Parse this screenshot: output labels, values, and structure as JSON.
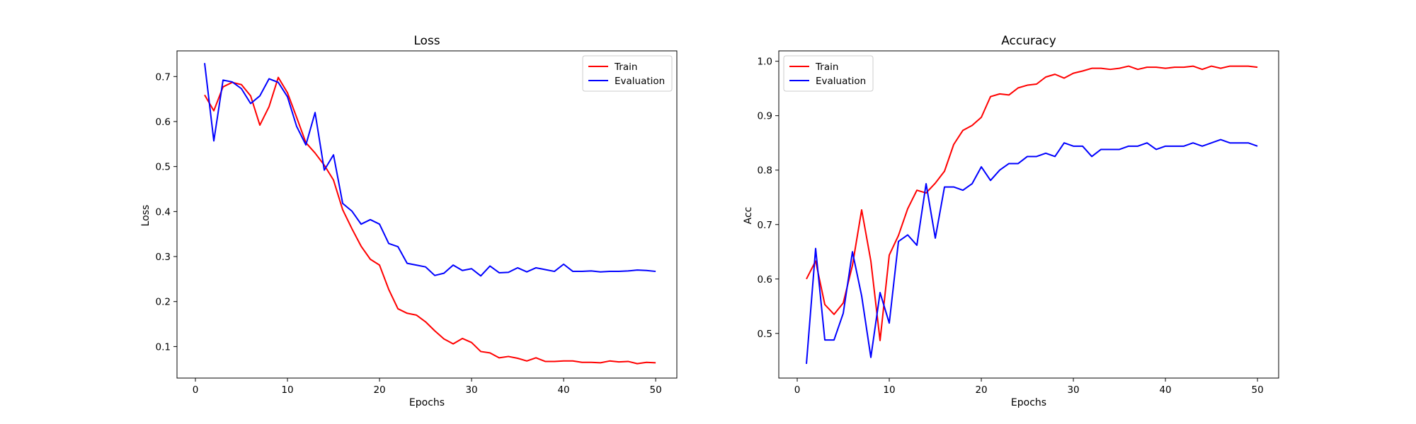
{
  "chart_data": [
    {
      "type": "line",
      "title": "Loss",
      "xlabel": "Epochs",
      "ylabel": "Loss",
      "xlim": [
        -2,
        52.3
      ],
      "ylim": [
        0.03,
        0.757
      ],
      "xticks": [
        0,
        10,
        20,
        30,
        40,
        50
      ],
      "yticks": [
        0.1,
        0.2,
        0.3,
        0.4,
        0.5,
        0.6,
        0.7
      ],
      "grid": false,
      "legend_position": "upper right",
      "x": [
        1,
        2,
        3,
        4,
        5,
        6,
        7,
        8,
        9,
        10,
        11,
        12,
        13,
        14,
        15,
        16,
        17,
        18,
        19,
        20,
        21,
        22,
        23,
        24,
        25,
        26,
        27,
        28,
        29,
        30,
        31,
        32,
        33,
        34,
        35,
        36,
        37,
        38,
        39,
        40,
        41,
        42,
        43,
        44,
        45,
        46,
        47,
        48,
        49,
        50
      ],
      "series": [
        {
          "name": "Train",
          "color": "#ff0000",
          "values": [
            0.659,
            0.624,
            0.677,
            0.687,
            0.682,
            0.657,
            0.592,
            0.633,
            0.698,
            0.664,
            0.609,
            0.553,
            0.53,
            0.503,
            0.47,
            0.404,
            0.362,
            0.323,
            0.294,
            0.281,
            0.227,
            0.184,
            0.174,
            0.17,
            0.155,
            0.135,
            0.117,
            0.106,
            0.118,
            0.109,
            0.089,
            0.086,
            0.075,
            0.078,
            0.074,
            0.068,
            0.075,
            0.067,
            0.067,
            0.068,
            0.068,
            0.065,
            0.065,
            0.064,
            0.068,
            0.066,
            0.067,
            0.062,
            0.065,
            0.064
          ]
        },
        {
          "name": "Evaluation",
          "color": "#0000ff",
          "values": [
            0.73,
            0.557,
            0.692,
            0.688,
            0.673,
            0.64,
            0.657,
            0.695,
            0.687,
            0.655,
            0.589,
            0.548,
            0.62,
            0.492,
            0.526,
            0.418,
            0.401,
            0.372,
            0.382,
            0.372,
            0.329,
            0.322,
            0.285,
            0.281,
            0.277,
            0.258,
            0.263,
            0.281,
            0.269,
            0.273,
            0.257,
            0.279,
            0.264,
            0.265,
            0.275,
            0.266,
            0.275,
            0.271,
            0.267,
            0.283,
            0.267,
            0.267,
            0.268,
            0.266,
            0.267,
            0.267,
            0.268,
            0.27,
            0.269,
            0.267
          ]
        }
      ]
    },
    {
      "type": "line",
      "title": "Accuracy",
      "xlabel": "Epochs",
      "ylabel": "Acc",
      "xlim": [
        -2,
        52.3
      ],
      "ylim": [
        0.418,
        1.019
      ],
      "xticks": [
        0,
        10,
        20,
        30,
        40,
        50
      ],
      "yticks": [
        0.5,
        0.6,
        0.7,
        0.8,
        0.9,
        1.0
      ],
      "ytick_labels": [
        "0.5",
        "0.6",
        "0.7",
        "0.8",
        "0.9",
        "1.0"
      ],
      "grid": false,
      "legend_position": "upper left",
      "x": [
        1,
        2,
        3,
        4,
        5,
        6,
        7,
        8,
        9,
        10,
        11,
        12,
        13,
        14,
        15,
        16,
        17,
        18,
        19,
        20,
        21,
        22,
        23,
        24,
        25,
        26,
        27,
        28,
        29,
        30,
        31,
        32,
        33,
        34,
        35,
        36,
        37,
        38,
        39,
        40,
        41,
        42,
        43,
        44,
        45,
        46,
        47,
        48,
        49,
        50
      ],
      "series": [
        {
          "name": "Train",
          "color": "#ff0000",
          "values": [
            0.6,
            0.633,
            0.553,
            0.535,
            0.556,
            0.625,
            0.727,
            0.633,
            0.487,
            0.644,
            0.68,
            0.729,
            0.763,
            0.758,
            0.776,
            0.798,
            0.847,
            0.873,
            0.882,
            0.897,
            0.935,
            0.94,
            0.938,
            0.951,
            0.956,
            0.958,
            0.971,
            0.976,
            0.969,
            0.978,
            0.982,
            0.987,
            0.987,
            0.985,
            0.987,
            0.991,
            0.985,
            0.989,
            0.989,
            0.987,
            0.989,
            0.989,
            0.991,
            0.985,
            0.991,
            0.987,
            0.991,
            0.991,
            0.991,
            0.989
          ]
        },
        {
          "name": "Evaluation",
          "color": "#0000ff",
          "values": [
            0.444,
            0.656,
            0.488,
            0.488,
            0.537,
            0.65,
            0.569,
            0.456,
            0.575,
            0.519,
            0.669,
            0.681,
            0.662,
            0.775,
            0.675,
            0.769,
            0.769,
            0.763,
            0.775,
            0.806,
            0.781,
            0.8,
            0.812,
            0.812,
            0.825,
            0.825,
            0.831,
            0.825,
            0.85,
            0.844,
            0.844,
            0.825,
            0.838,
            0.838,
            0.838,
            0.844,
            0.844,
            0.85,
            0.838,
            0.844,
            0.844,
            0.844,
            0.85,
            0.844,
            0.85,
            0.856,
            0.85,
            0.85,
            0.85,
            0.844
          ]
        }
      ]
    }
  ]
}
